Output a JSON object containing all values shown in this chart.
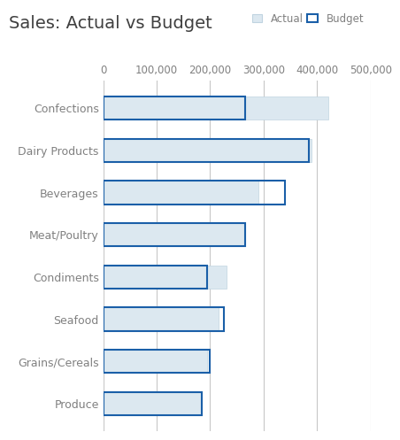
{
  "title": "Sales: Actual vs Budget",
  "categories": [
    "Confections",
    "Dairy Products",
    "Beverages",
    "Meat/Poultry",
    "Condiments",
    "Seafood",
    "Grains/Cereals",
    "Produce"
  ],
  "actual": [
    420000,
    390000,
    290000,
    265000,
    230000,
    215000,
    195000,
    185000
  ],
  "budget": [
    265000,
    385000,
    340000,
    265000,
    195000,
    225000,
    200000,
    185000
  ],
  "actual_color": "#dce8f0",
  "actual_edgecolor": "#c0d4e0",
  "budget_color": "none",
  "budget_edgecolor": "#1a5fa8",
  "xlim": [
    0,
    500000
  ],
  "xticks": [
    0,
    100000,
    200000,
    300000,
    400000,
    500000
  ],
  "xtick_labels": [
    "0",
    "100,000",
    "200,000",
    "300,000",
    "400,000",
    "500,000"
  ],
  "bar_height": 0.55,
  "title_fontsize": 14,
  "tick_fontsize": 8.5,
  "ytick_fontsize": 9,
  "legend_actual_label": "Actual",
  "legend_budget_label": "Budget",
  "background_color": "#ffffff",
  "grid_color": "#c8c8c8",
  "budget_linewidth": 1.5,
  "title_color": "#404040",
  "tick_color": "#808080"
}
